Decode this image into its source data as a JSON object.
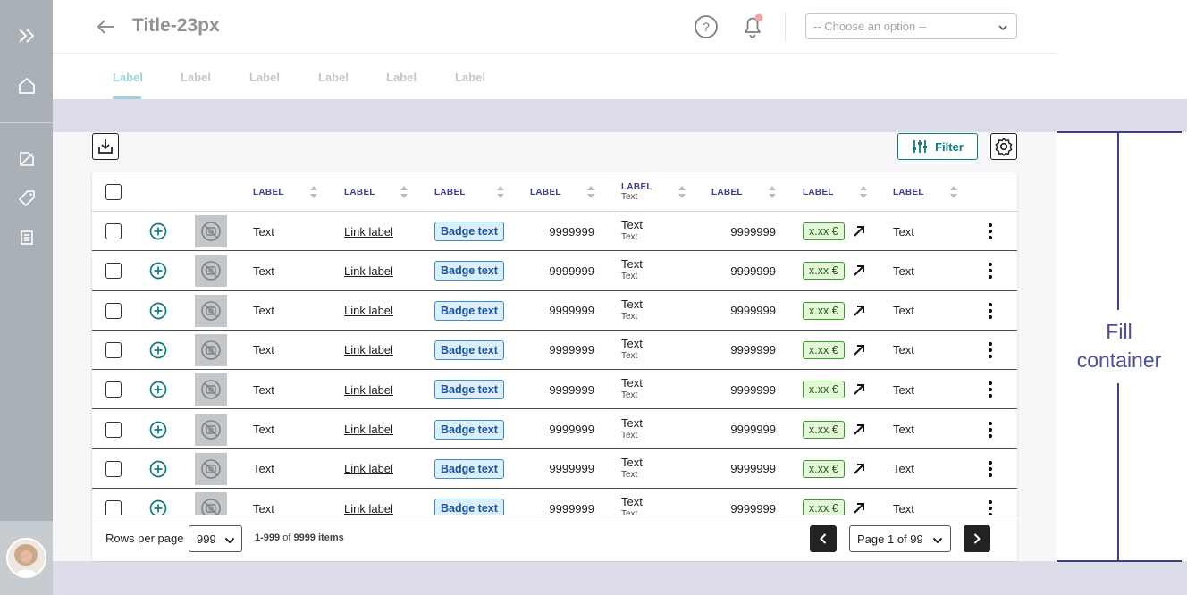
{
  "header": {
    "title": "Title-23px",
    "select_placeholder": "-- Choose an option --"
  },
  "tabs": [
    "Label",
    "Label",
    "Label",
    "Label",
    "Label",
    "Label"
  ],
  "toolbar": {
    "filter_label": "Filter"
  },
  "table": {
    "columns": [
      {
        "label": "LABEL",
        "sub": ""
      },
      {
        "label": "LABEL",
        "sub": ""
      },
      {
        "label": "LABEL",
        "sub": ""
      },
      {
        "label": "LABEL",
        "sub": ""
      },
      {
        "label": "LABEL",
        "sub": "Text"
      },
      {
        "label": "LABEL",
        "sub": ""
      },
      {
        "label": "LABEL",
        "sub": ""
      },
      {
        "label": "LABEL",
        "sub": ""
      }
    ],
    "rows": [
      {
        "text": "Text",
        "link": "Link label",
        "badge": "Badge text",
        "num1": "9999999",
        "two_main": "Text",
        "two_sub": "Text",
        "num2": "9999999",
        "price": "x.xx €",
        "last": "Text"
      },
      {
        "text": "Text",
        "link": "Link label",
        "badge": "Badge text",
        "num1": "9999999",
        "two_main": "Text",
        "two_sub": "Text",
        "num2": "9999999",
        "price": "x.xx €",
        "last": "Text"
      },
      {
        "text": "Text",
        "link": "Link label",
        "badge": "Badge text",
        "num1": "9999999",
        "two_main": "Text",
        "two_sub": "Text",
        "num2": "9999999",
        "price": "x.xx €",
        "last": "Text"
      },
      {
        "text": "Text",
        "link": "Link label",
        "badge": "Badge text",
        "num1": "9999999",
        "two_main": "Text",
        "two_sub": "Text",
        "num2": "9999999",
        "price": "x.xx €",
        "last": "Text"
      },
      {
        "text": "Text",
        "link": "Link label",
        "badge": "Badge text",
        "num1": "9999999",
        "two_main": "Text",
        "two_sub": "Text",
        "num2": "9999999",
        "price": "x.xx €",
        "last": "Text"
      },
      {
        "text": "Text",
        "link": "Link label",
        "badge": "Badge text",
        "num1": "9999999",
        "two_main": "Text",
        "two_sub": "Text",
        "num2": "9999999",
        "price": "x.xx €",
        "last": "Text"
      },
      {
        "text": "Text",
        "link": "Link label",
        "badge": "Badge text",
        "num1": "9999999",
        "two_main": "Text",
        "two_sub": "Text",
        "num2": "9999999",
        "price": "x.xx €",
        "last": "Text"
      },
      {
        "text": "Text",
        "link": "Link label",
        "badge": "Badge text",
        "num1": "9999999",
        "two_main": "Text",
        "two_sub": "Text",
        "num2": "9999999",
        "price": "x.xx €",
        "last": "Text"
      }
    ]
  },
  "footer": {
    "rows_per_page_label": "Rows per page",
    "rows_per_page_value": "999",
    "items_range": "1-999",
    "items_of": "of",
    "items_total": "9999 items",
    "page_label": "Page 1 of 99"
  },
  "annotation": {
    "fill_container": "Fill container"
  },
  "colors": {
    "accent": "#0e7a82",
    "header_label": "#3c3f8c",
    "sidebar": "#a9b0b6",
    "band": "#dcdde8"
  }
}
